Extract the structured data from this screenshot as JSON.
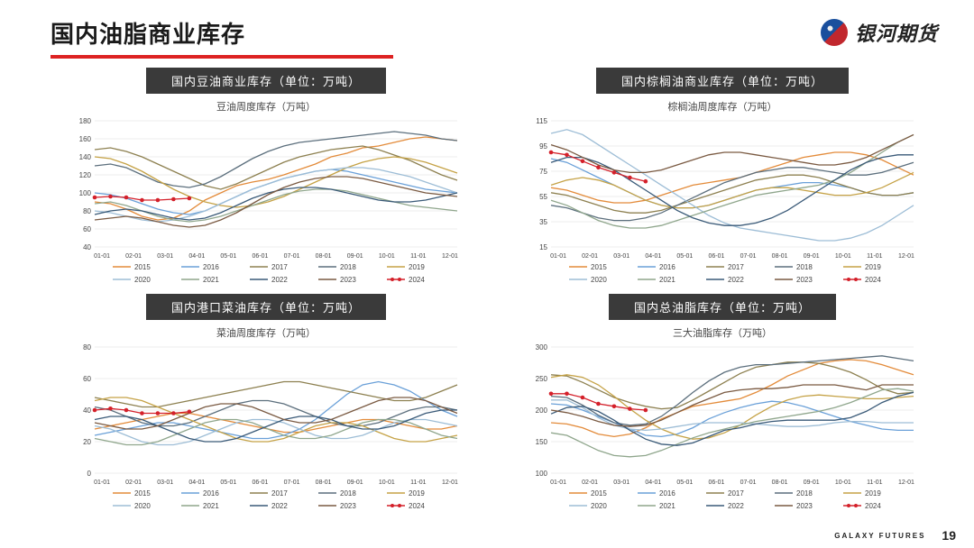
{
  "page": {
    "title": "国内油脂商业库存",
    "logo_text": "银河期货",
    "footer_label": "GALAXY FUTURES",
    "page_number": "19"
  },
  "legend_years": [
    "2015",
    "2016",
    "2017",
    "2018",
    "2019",
    "2020",
    "2021",
    "2022",
    "2023",
    "2024"
  ],
  "series_colors": {
    "2015": "#e38b3a",
    "2016": "#6aa0d8",
    "2017": "#8d8050",
    "2018": "#5c6f7d",
    "2019": "#c5a246",
    "2020": "#9dbdd6",
    "2021": "#8fa68c",
    "2022": "#3a5a78",
    "2023": "#7a5a42",
    "2024": "#d4202a"
  },
  "x_labels": [
    "01-01",
    "02-01",
    "03-01",
    "04-01",
    "05-01",
    "06-01",
    "07-01",
    "08-01",
    "09-01",
    "10-01",
    "11-01",
    "12-01"
  ],
  "charts": {
    "c1": {
      "bar_title": "国内豆油商业库存（单位：万吨）",
      "subtitle": "豆油周度库存（万吨）",
      "ylim": [
        40,
        180
      ],
      "ystep": 20,
      "series": {
        "2015": [
          90,
          88,
          82,
          74,
          70,
          72,
          80,
          92,
          100,
          108,
          112,
          115,
          120,
          126,
          132,
          140,
          144,
          150,
          152,
          156,
          160,
          162,
          160,
          158
        ],
        "2016": [
          100,
          98,
          94,
          88,
          82,
          78,
          76,
          80,
          88,
          96,
          104,
          110,
          116,
          120,
          124,
          126,
          124,
          120,
          116,
          112,
          108,
          104,
          102,
          100
        ],
        "2017": [
          148,
          150,
          146,
          140,
          132,
          124,
          116,
          108,
          104,
          110,
          118,
          126,
          134,
          140,
          144,
          148,
          150,
          152,
          148,
          142,
          136,
          128,
          120,
          114
        ],
        "2018": [
          130,
          132,
          128,
          120,
          112,
          108,
          106,
          110,
          118,
          128,
          138,
          146,
          152,
          156,
          158,
          160,
          162,
          164,
          166,
          168,
          166,
          164,
          160,
          158
        ],
        "2019": [
          140,
          138,
          132,
          124,
          114,
          104,
          96,
          90,
          86,
          84,
          86,
          90,
          96,
          104,
          112,
          120,
          128,
          134,
          138,
          140,
          138,
          134,
          128,
          122
        ],
        "2020": [
          80,
          78,
          74,
          70,
          68,
          70,
          74,
          80,
          88,
          96,
          104,
          110,
          116,
          120,
          124,
          126,
          128,
          128,
          126,
          122,
          118,
          112,
          106,
          100
        ],
        "2021": [
          88,
          90,
          86,
          80,
          74,
          70,
          68,
          70,
          74,
          80,
          86,
          92,
          98,
          102,
          104,
          104,
          102,
          98,
          94,
          90,
          86,
          84,
          82,
          80
        ],
        "2022": [
          76,
          80,
          82,
          80,
          76,
          72,
          70,
          72,
          78,
          86,
          94,
          100,
          104,
          106,
          106,
          104,
          100,
          96,
          92,
          90,
          90,
          92,
          96,
          100
        ],
        "2023": [
          70,
          72,
          74,
          72,
          68,
          64,
          62,
          64,
          70,
          78,
          88,
          98,
          106,
          112,
          116,
          118,
          118,
          116,
          112,
          108,
          104,
          100,
          98,
          96
        ],
        "2024": [
          95,
          96,
          95,
          92,
          92,
          93,
          94
        ]
      }
    },
    "c2": {
      "bar_title": "国内棕榈油商业库存（单位：万吨）",
      "subtitle": "棕榈油周度库存（万吨）",
      "ylim": [
        15,
        115
      ],
      "ystep": 20,
      "series": {
        "2015": [
          62,
          60,
          56,
          52,
          50,
          50,
          52,
          56,
          60,
          64,
          66,
          68,
          70,
          74,
          78,
          82,
          86,
          88,
          90,
          90,
          88,
          84,
          78,
          72
        ],
        "2016": [
          85,
          82,
          76,
          70,
          64,
          58,
          52,
          48,
          46,
          46,
          48,
          52,
          56,
          60,
          62,
          64,
          66,
          66,
          64,
          62,
          58,
          56,
          56,
          58
        ],
        "2017": [
          58,
          56,
          52,
          48,
          44,
          42,
          42,
          44,
          48,
          52,
          56,
          60,
          64,
          68,
          70,
          72,
          72,
          70,
          66,
          62,
          58,
          56,
          56,
          58
        ],
        "2018": [
          48,
          46,
          42,
          38,
          36,
          36,
          38,
          42,
          48,
          54,
          60,
          66,
          70,
          74,
          76,
          78,
          78,
          76,
          74,
          72,
          72,
          74,
          78,
          82
        ],
        "2019": [
          64,
          68,
          70,
          68,
          64,
          58,
          52,
          48,
          46,
          46,
          48,
          52,
          56,
          60,
          62,
          62,
          60,
          58,
          56,
          56,
          58,
          62,
          68,
          74
        ],
        "2020": [
          105,
          108,
          104,
          96,
          88,
          80,
          72,
          64,
          56,
          48,
          40,
          34,
          30,
          28,
          26,
          24,
          22,
          20,
          20,
          22,
          26,
          32,
          40,
          48
        ],
        "2021": [
          52,
          48,
          42,
          36,
          32,
          30,
          30,
          32,
          36,
          40,
          44,
          48,
          52,
          56,
          58,
          60,
          62,
          64,
          68,
          74,
          82,
          90,
          98,
          104
        ],
        "2022": [
          82,
          86,
          86,
          82,
          76,
          68,
          60,
          52,
          44,
          38,
          34,
          32,
          32,
          34,
          38,
          44,
          52,
          60,
          68,
          76,
          82,
          86,
          88,
          88
        ],
        "2023": [
          96,
          92,
          86,
          80,
          76,
          74,
          74,
          76,
          80,
          84,
          88,
          90,
          90,
          88,
          86,
          84,
          82,
          80,
          80,
          82,
          86,
          92,
          98,
          104
        ],
        "2024": [
          90,
          88,
          83,
          78,
          74,
          70,
          67
        ]
      }
    },
    "c3": {
      "bar_title": "国内港口菜油库存（单位：万吨）",
      "subtitle": "菜油周度库存（万吨）",
      "ylim": [
        0,
        80
      ],
      "ystep": 20,
      "series": {
        "2015": [
          28,
          30,
          32,
          34,
          36,
          38,
          38,
          36,
          34,
          32,
          30,
          28,
          26,
          26,
          28,
          30,
          32,
          34,
          34,
          32,
          30,
          28,
          28,
          30
        ],
        "2016": [
          24,
          26,
          28,
          30,
          32,
          32,
          30,
          28,
          26,
          24,
          22,
          22,
          24,
          28,
          34,
          42,
          50,
          56,
          58,
          56,
          52,
          46,
          40,
          36
        ],
        "2017": [
          48,
          46,
          44,
          42,
          42,
          44,
          46,
          48,
          50,
          52,
          54,
          56,
          58,
          58,
          56,
          54,
          52,
          50,
          48,
          46,
          46,
          48,
          52,
          56
        ],
        "2018": [
          42,
          40,
          36,
          32,
          30,
          30,
          32,
          36,
          40,
          44,
          46,
          46,
          44,
          40,
          36,
          32,
          30,
          30,
          32,
          36,
          40,
          42,
          42,
          40
        ],
        "2019": [
          46,
          48,
          48,
          46,
          42,
          38,
          34,
          30,
          26,
          22,
          20,
          20,
          22,
          26,
          30,
          32,
          32,
          30,
          26,
          22,
          20,
          20,
          22,
          24
        ],
        "2020": [
          30,
          28,
          24,
          20,
          18,
          18,
          20,
          24,
          28,
          32,
          34,
          34,
          32,
          28,
          24,
          22,
          22,
          24,
          28,
          32,
          34,
          34,
          32,
          30
        ],
        "2021": [
          22,
          20,
          18,
          18,
          20,
          24,
          28,
          32,
          34,
          34,
          32,
          28,
          24,
          22,
          22,
          24,
          28,
          32,
          34,
          34,
          32,
          28,
          24,
          22
        ],
        "2022": [
          34,
          36,
          36,
          34,
          30,
          26,
          22,
          20,
          20,
          22,
          26,
          30,
          34,
          36,
          36,
          34,
          30,
          28,
          28,
          30,
          34,
          38,
          40,
          40
        ],
        "2023": [
          32,
          30,
          28,
          28,
          30,
          34,
          38,
          42,
          44,
          44,
          42,
          38,
          34,
          32,
          32,
          34,
          38,
          42,
          46,
          48,
          48,
          46,
          42,
          38
        ],
        "2024": [
          40,
          41,
          40,
          38,
          38,
          38,
          39
        ]
      }
    },
    "c4": {
      "bar_title": "国内总油脂库存（单位：万吨）",
      "subtitle": "三大油脂库存（万吨）",
      "ylim": [
        100,
        300
      ],
      "ystep": 50,
      "series": {
        "2015": [
          180,
          178,
          172,
          162,
          158,
          162,
          172,
          186,
          196,
          206,
          210,
          214,
          218,
          228,
          240,
          254,
          264,
          274,
          278,
          280,
          278,
          272,
          264,
          256
        ],
        "2016": [
          210,
          208,
          200,
          190,
          180,
          170,
          160,
          158,
          162,
          172,
          186,
          196,
          204,
          210,
          214,
          212,
          206,
          198,
          190,
          182,
          176,
          170,
          168,
          168
        ],
        "2017": [
          256,
          254,
          244,
          232,
          220,
          212,
          206,
          202,
          204,
          216,
          230,
          244,
          258,
          268,
          272,
          276,
          276,
          274,
          268,
          260,
          248,
          234,
          226,
          228
        ],
        "2018": [
          222,
          220,
          208,
          192,
          180,
          176,
          178,
          190,
          208,
          228,
          246,
          260,
          268,
          272,
          272,
          274,
          276,
          278,
          280,
          282,
          284,
          286,
          282,
          278
        ],
        "2019": [
          252,
          256,
          252,
          240,
          222,
          202,
          184,
          170,
          160,
          154,
          156,
          164,
          176,
          192,
          206,
          216,
          222,
          224,
          222,
          220,
          218,
          218,
          220,
          222
        ],
        "2020": [
          216,
          216,
          204,
          188,
          176,
          170,
          168,
          170,
          174,
          178,
          180,
          180,
          180,
          178,
          176,
          174,
          174,
          176,
          180,
          182,
          182,
          180,
          180,
          180
        ],
        "2021": [
          164,
          160,
          148,
          136,
          128,
          126,
          128,
          136,
          146,
          156,
          164,
          170,
          176,
          182,
          186,
          190,
          194,
          198,
          204,
          212,
          222,
          232,
          234,
          230
        ],
        "2022": [
          194,
          204,
          206,
          198,
          184,
          168,
          154,
          146,
          144,
          148,
          158,
          168,
          172,
          178,
          182,
          184,
          184,
          184,
          184,
          188,
          198,
          212,
          222,
          228
        ],
        "2023": [
          200,
          196,
          190,
          182,
          176,
          174,
          176,
          184,
          196,
          208,
          218,
          228,
          232,
          234,
          234,
          236,
          240,
          240,
          240,
          236,
          232,
          240,
          240,
          240
        ],
        "2024": [
          226,
          226,
          220,
          210,
          206,
          202,
          200
        ]
      }
    }
  }
}
